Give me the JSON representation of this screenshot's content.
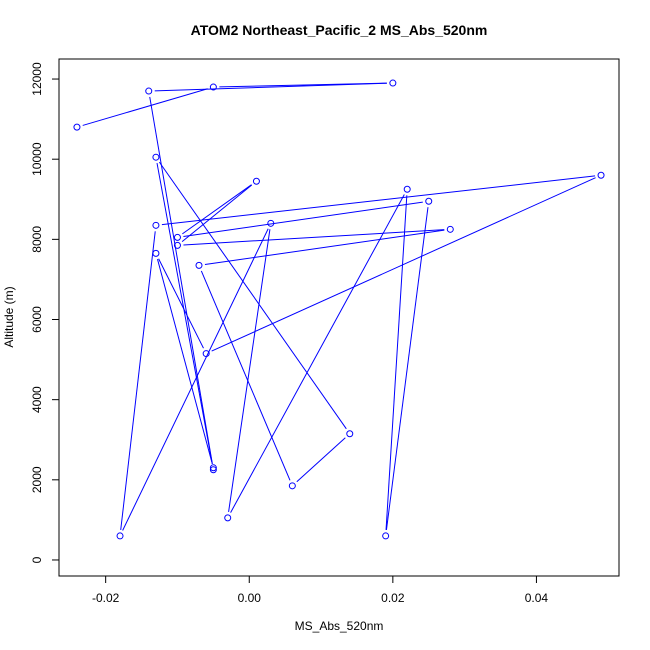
{
  "chart_data": {
    "type": "line",
    "markers": "open-circle",
    "title": "ATOM2 Northeast_Pacific_2 MS_Abs_520nm",
    "xlabel": "MS_Abs_520nm",
    "ylabel": "Altitude (m)",
    "xlim": [
      -0.0265,
      0.0515
    ],
    "ylim": [
      -400,
      12500
    ],
    "x_ticks": [
      -0.02,
      0.0,
      0.02,
      0.04
    ],
    "x_tick_labels": [
      "-0.02",
      "0.00",
      "0.02",
      "0.04"
    ],
    "y_ticks": [
      0,
      2000,
      4000,
      6000,
      8000,
      10000,
      12000
    ],
    "y_tick_labels": [
      "0",
      "2000",
      "4000",
      "6000",
      "8000",
      "10000",
      "12000"
    ],
    "grid": false,
    "color": "#0000ff",
    "series": [
      {
        "x": [
          -0.024,
          -0.005,
          0.02,
          -0.014,
          -0.005,
          -0.013,
          0.014,
          0.006,
          -0.007,
          0.028,
          -0.01,
          0.001,
          -0.01,
          0.025,
          0.019,
          0.022,
          -0.003,
          0.003,
          -0.018,
          -0.013,
          0.049,
          -0.006,
          -0.013,
          -0.005
        ],
        "y": [
          10800,
          11800,
          11900,
          11700,
          2250,
          10050,
          3150,
          1850,
          7350,
          8250,
          7850,
          9450,
          8050,
          8950,
          600,
          9250,
          1050,
          8400,
          600,
          8350,
          9600,
          5150,
          7650,
          2300
        ]
      }
    ]
  }
}
